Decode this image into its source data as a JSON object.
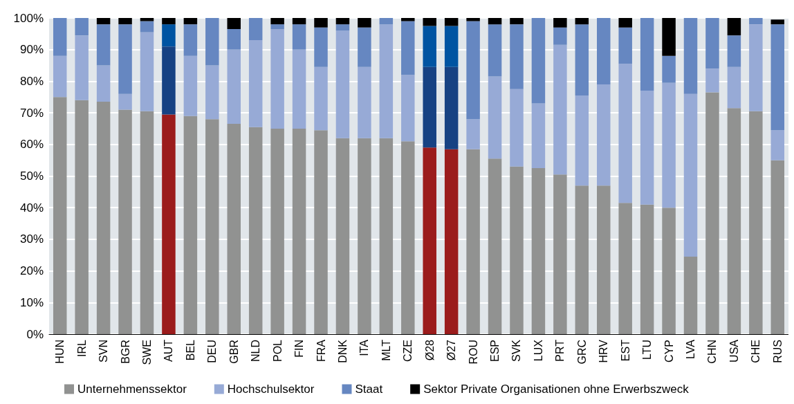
{
  "chart_data": {
    "type": "bar",
    "stacked": true,
    "categories": [
      "HUN",
      "IRL",
      "SVN",
      "BGR",
      "SWE",
      "AUT",
      "BEL",
      "DEU",
      "GBR",
      "NLD",
      "POL",
      "FIN",
      "FRA",
      "DNK",
      "ITA",
      "MLT",
      "CZE",
      "Ø28",
      "Ø27",
      "ROU",
      "ESP",
      "SVK",
      "LUX",
      "PRT",
      "GRC",
      "HRV",
      "EST",
      "LTU",
      "CYP",
      "LVA",
      "CHN",
      "USA",
      "CHE",
      "RUS"
    ],
    "series": [
      {
        "name": "Unternehmenssektor",
        "color": "#919291",
        "colors": [
          "#919291",
          "#919291",
          "#919291",
          "#919291",
          "#919291",
          "#9b1c1c",
          "#919291",
          "#919291",
          "#919291",
          "#919291",
          "#919291",
          "#919291",
          "#919291",
          "#919291",
          "#919291",
          "#919291",
          "#919291",
          "#9b1c1c",
          "#9b1c1c",
          "#919291",
          "#919291",
          "#919291",
          "#919291",
          "#919291",
          "#919291",
          "#919291",
          "#919291",
          "#919291",
          "#919291",
          "#919291",
          "#919291",
          "#919291",
          "#919291",
          "#919291"
        ],
        "values": [
          75,
          74,
          73.5,
          71,
          70.5,
          69.5,
          69,
          68,
          66.5,
          65.5,
          65,
          65,
          64.5,
          62,
          62,
          62,
          61,
          59,
          58.5,
          58.5,
          55.5,
          53,
          52.5,
          50.5,
          47,
          47,
          41.5,
          41,
          40,
          24.5,
          76.5,
          71.5,
          70.5,
          55
        ]
      },
      {
        "name": "Hochschulsektor",
        "color": "#97aad6",
        "colors": [
          "#97aad6",
          "#97aad6",
          "#97aad6",
          "#97aad6",
          "#97aad6",
          "#174283",
          "#97aad6",
          "#97aad6",
          "#97aad6",
          "#97aad6",
          "#97aad6",
          "#97aad6",
          "#97aad6",
          "#97aad6",
          "#97aad6",
          "#97aad6",
          "#97aad6",
          "#174283",
          "#174283",
          "#97aad6",
          "#97aad6",
          "#97aad6",
          "#97aad6",
          "#97aad6",
          "#97aad6",
          "#97aad6",
          "#97aad6",
          "#97aad6",
          "#97aad6",
          "#97aad6",
          "#97aad6",
          "#97aad6",
          "#97aad6",
          "#97aad6"
        ],
        "values": [
          13,
          20.5,
          11.5,
          5,
          25,
          21.5,
          19,
          17,
          23.5,
          27.5,
          31.5,
          25,
          20,
          34,
          22.5,
          36,
          21,
          25.5,
          26,
          9.5,
          26,
          24.5,
          20.5,
          41,
          28.5,
          32,
          44,
          36,
          39.5,
          51.5,
          7.5,
          13,
          27.5,
          9.5
        ]
      },
      {
        "name": "Staat",
        "color": "#6687c1",
        "colors": [
          "#6687c1",
          "#6687c1",
          "#6687c1",
          "#6687c1",
          "#6687c1",
          "#0054a2",
          "#6687c1",
          "#6687c1",
          "#6687c1",
          "#6687c1",
          "#6687c1",
          "#6687c1",
          "#6687c1",
          "#6687c1",
          "#6687c1",
          "#6687c1",
          "#6687c1",
          "#0054a2",
          "#0054a2",
          "#6687c1",
          "#6687c1",
          "#6687c1",
          "#6687c1",
          "#6687c1",
          "#6687c1",
          "#6687c1",
          "#6687c1",
          "#6687c1",
          "#6687c1",
          "#6687c1",
          "#6687c1",
          "#6687c1",
          "#6687c1",
          "#6687c1"
        ],
        "values": [
          12,
          5.5,
          13,
          22,
          3.5,
          7,
          10,
          15,
          6.5,
          7,
          1.5,
          8,
          12.5,
          2,
          12.5,
          2,
          17,
          13,
          13,
          31,
          16.5,
          20.5,
          27,
          5.5,
          22.5,
          21,
          11.5,
          23,
          8.5,
          24,
          16,
          10,
          2,
          33.5
        ]
      },
      {
        "name": "Sektor Private Organisationen ohne Erwerbszweck",
        "color": "#000000",
        "values": [
          0,
          0,
          2,
          2,
          1,
          2,
          2,
          0,
          3.5,
          0,
          2,
          2,
          3,
          2,
          3,
          0,
          1,
          2.5,
          2.5,
          1,
          2,
          2,
          0,
          3,
          2,
          0,
          3,
          0,
          12,
          0,
          0,
          5.5,
          0,
          1.5
        ]
      }
    ],
    "ylim": [
      0,
      100
    ],
    "yticks": [
      {
        "value": 0,
        "label": "0%"
      },
      {
        "value": 10,
        "label": "10%"
      },
      {
        "value": 20,
        "label": "20%"
      },
      {
        "value": 30,
        "label": "30%"
      },
      {
        "value": 40,
        "label": "40%"
      },
      {
        "value": 50,
        "label": "50%"
      },
      {
        "value": 60,
        "label": "60%"
      },
      {
        "value": 70,
        "label": "70%"
      },
      {
        "value": 80,
        "label": "80%"
      },
      {
        "value": 90,
        "label": "90%"
      },
      {
        "value": 100,
        "label": "100%"
      }
    ],
    "grid": "y",
    "legend": "bottom"
  }
}
